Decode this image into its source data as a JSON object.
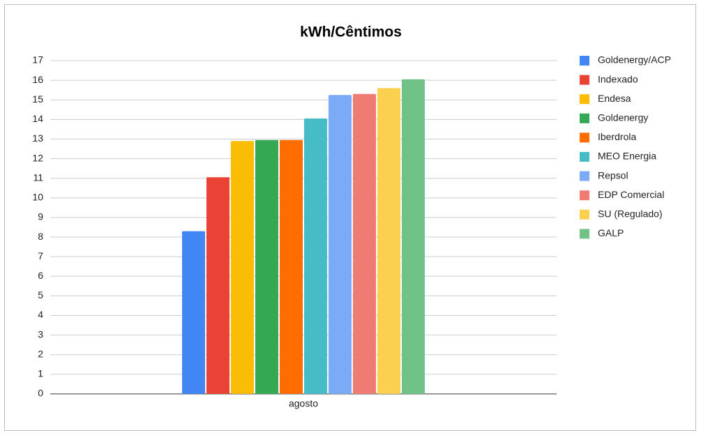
{
  "chart_data": {
    "type": "bar",
    "title": "kWh/Cêntimos",
    "categories": [
      "agosto"
    ],
    "series": [
      {
        "name": "Goldenergy/ACP",
        "color": "#4285f4",
        "values": [
          8.3
        ]
      },
      {
        "name": "Indexado",
        "color": "#ea4335",
        "values": [
          11.05
        ]
      },
      {
        "name": "Endesa",
        "color": "#fbbc04",
        "values": [
          12.9
        ]
      },
      {
        "name": "Goldenergy",
        "color": "#34a853",
        "values": [
          12.95
        ]
      },
      {
        "name": "Iberdrola",
        "color": "#ff6d01",
        "values": [
          12.95
        ]
      },
      {
        "name": "MEO Energia",
        "color": "#46bdc6",
        "values": [
          14.05
        ]
      },
      {
        "name": "Repsol",
        "color": "#7baaf7",
        "values": [
          15.25
        ]
      },
      {
        "name": "EDP Comercial",
        "color": "#f07b72",
        "values": [
          15.3
        ]
      },
      {
        "name": "SU (Regulado)",
        "color": "#fcd04f",
        "values": [
          15.6
        ]
      },
      {
        "name": "GALP",
        "color": "#71c287",
        "values": [
          16.05
        ]
      }
    ],
    "ylim": [
      0,
      17
    ],
    "yticks": [
      0,
      1,
      2,
      3,
      4,
      5,
      6,
      7,
      8,
      9,
      10,
      11,
      12,
      13,
      14,
      15,
      16,
      17
    ],
    "grid": true,
    "legend": "right"
  }
}
